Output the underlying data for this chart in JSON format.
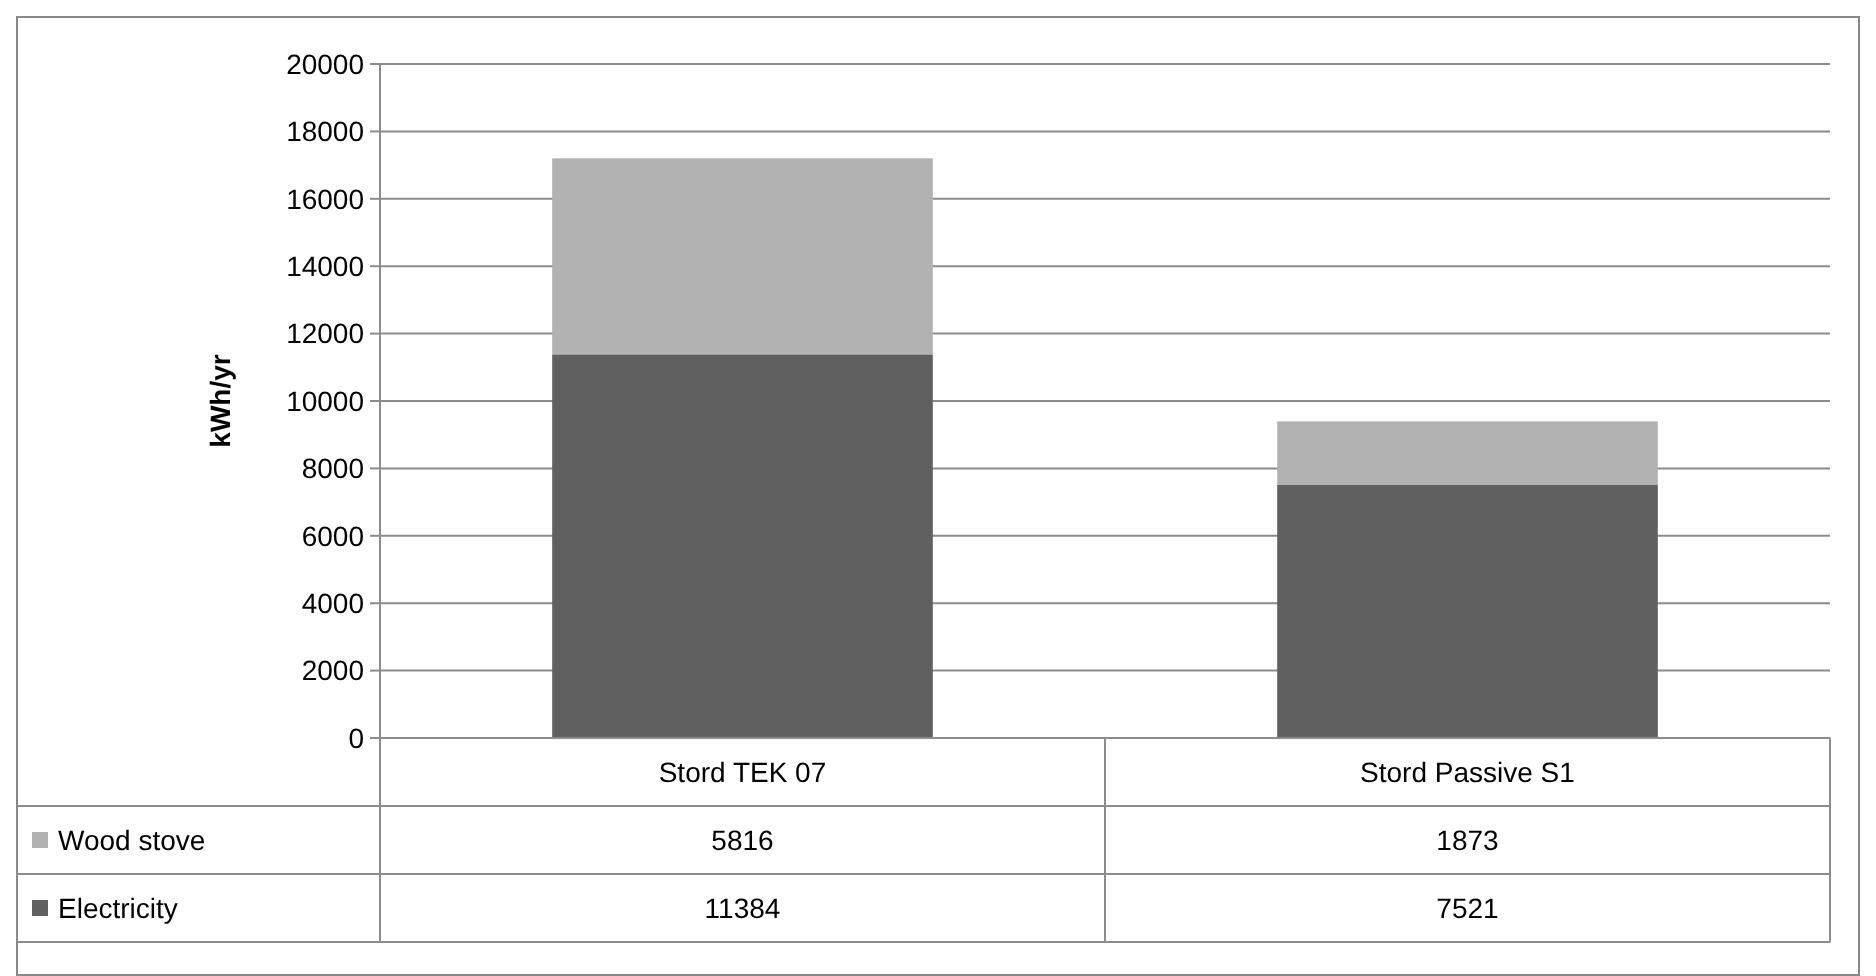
{
  "chart_data": {
    "type": "bar",
    "stacked": true,
    "ylabel": "kWh/yr",
    "categories": [
      "Stord TEK 07",
      "Stord Passive S1"
    ],
    "series": [
      {
        "name": "Electricity",
        "color": "#606060",
        "values": [
          11384,
          7521
        ]
      },
      {
        "name": "Wood stove",
        "color": "#b2b2b2",
        "values": [
          5816,
          1873
        ]
      }
    ],
    "ylim": [
      0,
      20000
    ],
    "yticks": [
      0,
      2000,
      4000,
      6000,
      8000,
      10000,
      12000,
      14000,
      16000,
      18000,
      20000
    ],
    "grid": "y",
    "legend": "bottom left",
    "data_labels": true
  }
}
